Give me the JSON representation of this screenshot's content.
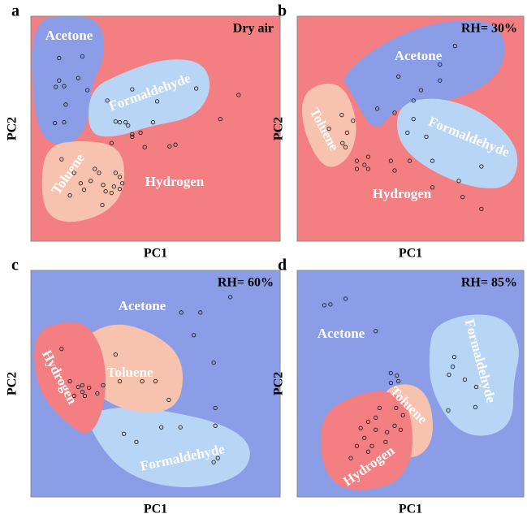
{
  "chart_data": [
    {
      "type": "scatter",
      "panel": "a",
      "annotation": "Dry air",
      "xlabel": "PC1",
      "ylabel": "PC2",
      "background": "#f47f82",
      "xlim": [
        0,
        300
      ],
      "ylim": [
        0,
        280
      ],
      "series": [
        {
          "name": "Acetone",
          "color": "#8a9de6",
          "x": [
            34,
            62,
            34,
            30,
            40,
            57,
            42,
            29,
            40,
            68
          ],
          "y": [
            228,
            230,
            200,
            192,
            193,
            203,
            170,
            147,
            148,
            188
          ]
        },
        {
          "name": "Formaldehyde",
          "color": "#b9d5f6",
          "x": [
            92,
            122,
            152,
            199,
            102,
            107,
            114,
            117,
            147,
            228,
            250
          ],
          "y": [
            175,
            189,
            174,
            190,
            149,
            148,
            148,
            144,
            148,
            152,
            182
          ]
        },
        {
          "name": "Toluene",
          "color": "#f8c3ae",
          "x": [
            37,
            52,
            77,
            82,
            72,
            47,
            60,
            87,
            64
          ],
          "y": [
            102,
            85,
            90,
            85,
            75,
            57,
            72,
            70,
            64
          ]
        },
        {
          "name": "Hydrogen",
          "color": "#f47f82",
          "x": [
            102,
            107,
            110,
            100,
            90,
            107,
            97,
            86,
            132,
            122,
            137,
            167,
            174,
            97,
            122
          ],
          "y": [
            85,
            80,
            72,
            68,
            62,
            65,
            60,
            45,
            135,
            133,
            117,
            118,
            120,
            122,
            130
          ]
        }
      ]
    },
    {
      "type": "scatter",
      "panel": "b",
      "annotation": "RH= 30%",
      "xlabel": "PC1",
      "ylabel": "PC2",
      "background": "#f47f82",
      "xlim": [
        0,
        300
      ],
      "ylim": [
        0,
        280
      ],
      "series": [
        {
          "name": "Acetone",
          "color": "#8a9de6",
          "x": [
            209,
            189,
            164,
            134,
            189,
            106,
            154
          ],
          "y": [
            243,
            200,
            188,
            205,
            220,
            165,
            175
          ]
        },
        {
          "name": "Formaldehyde",
          "color": "#b9d5f6",
          "x": [
            129,
            154,
            146,
            171,
            179,
            244,
            214,
            149
          ],
          "y": [
            160,
            152,
            135,
            130,
            100,
            93,
            75,
            100
          ]
        },
        {
          "name": "Toluene",
          "color": "#f8c3ae",
          "x": [
            59,
            74,
            66,
            60,
            64,
            42
          ],
          "y": [
            157,
            150,
            135,
            122,
            117,
            140
          ]
        },
        {
          "name": "Hydrogen",
          "color": "#f47f82",
          "x": [
            79,
            89,
            94,
            79,
            124,
            129,
            179,
            219,
            244,
            94
          ],
          "y": [
            100,
            95,
            90,
            90,
            100,
            88,
            67,
            55,
            40,
            105
          ]
        }
      ]
    },
    {
      "type": "scatter",
      "panel": "c",
      "annotation": "RH= 60%",
      "xlabel": "PC1",
      "ylabel": "PC2",
      "background": "#8a9de6",
      "xlim": [
        0,
        300
      ],
      "ylim": [
        0,
        280
      ],
      "series": [
        {
          "name": "Acetone",
          "color": "#8a9de6",
          "x": [
            240,
            204,
            181,
            196,
            220,
            222
          ],
          "y": [
            247,
            228,
            228,
            200,
            166,
            110
          ]
        },
        {
          "name": "Formaldehyde",
          "color": "#b9d5f6",
          "x": [
            112,
            127,
            157,
            180,
            222,
            220,
            225
          ],
          "y": [
            78,
            68,
            86,
            86,
            88,
            43,
            48
          ]
        },
        {
          "name": "Toluene",
          "color": "#f8c3ae",
          "x": [
            102,
            107,
            134,
            150,
            166,
            87
          ],
          "y": [
            176,
            143,
            143,
            143,
            120,
            138
          ]
        },
        {
          "name": "Hydrogen",
          "color": "#f47f82",
          "x": [
            37,
            62,
            57,
            70,
            80,
            65,
            52,
            62,
            47
          ],
          "y": [
            183,
            138,
            136,
            135,
            128,
            125,
            125,
            130,
            143
          ]
        }
      ]
    },
    {
      "type": "scatter",
      "panel": "d",
      "annotation": "RH= 85%",
      "xlabel": "PC1",
      "ylabel": "PC2",
      "background": "#8a9de6",
      "xlim": [
        0,
        300
      ],
      "ylim": [
        0,
        280
      ],
      "series": [
        {
          "name": "Acetone",
          "color": "#8a9de6",
          "x": [
            36,
            44,
            64,
            104,
            124,
            132,
            124,
            134
          ],
          "y": [
            237,
            238,
            245,
            205,
            153,
            150,
            141,
            143
          ]
        },
        {
          "name": "Formaldehyde",
          "color": "#b9d5f6",
          "x": [
            208,
            206,
            201,
            222,
            237,
            236,
            200
          ],
          "y": [
            173,
            161,
            151,
            145,
            136,
            111,
            107
          ]
        },
        {
          "name": "Toluene",
          "color": "#f8c3ae",
          "x": [
            131,
            140,
            129,
            137,
            119
          ],
          "y": [
            110,
            101,
            88,
            83,
            80
          ]
        },
        {
          "name": "Hydrogen",
          "color": "#f47f82",
          "x": [
            109,
            104,
            94,
            84,
            104,
            89,
            99,
            79,
            94,
            71,
            117
          ],
          "y": [
            110,
            98,
            93,
            85,
            83,
            73,
            63,
            63,
            56,
            48,
            68
          ]
        }
      ]
    }
  ]
}
